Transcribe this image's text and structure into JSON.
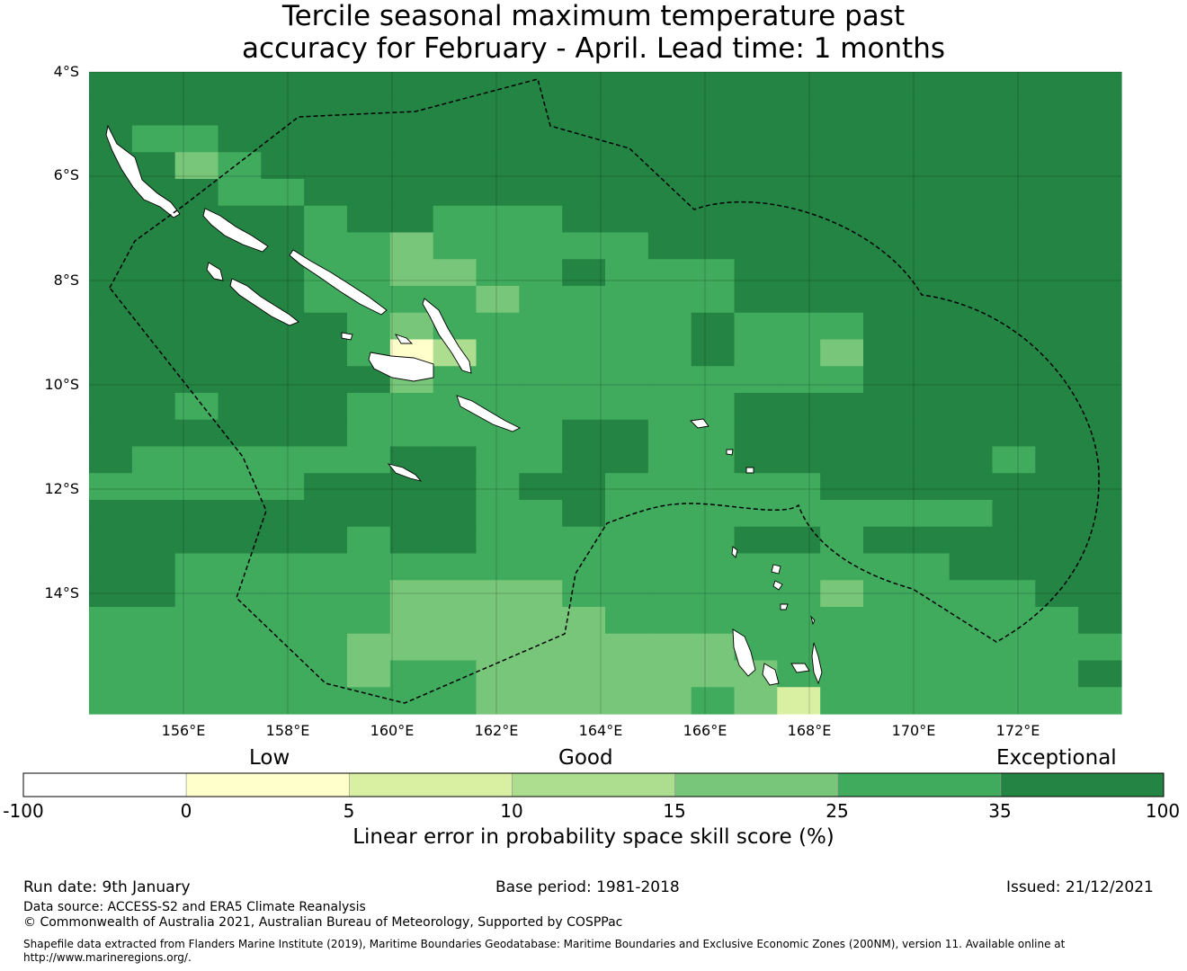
{
  "title": {
    "line1": "Tercile seasonal maximum temperature past",
    "line2": "accuracy for February - April. Lead time: 1 months"
  },
  "map": {
    "lat_labels": [
      "4°S",
      "6°S",
      "8°S",
      "10°S",
      "12°S",
      "14°S"
    ],
    "lon_labels": [
      "156°E",
      "158°E",
      "160°E",
      "162°E",
      "164°E",
      "166°E",
      "168°E",
      "170°E",
      "172°E"
    ],
    "palette": {
      "0": "#ffffcc",
      "1": "#d9f0a3",
      "2": "#addd8e",
      "3": "#78c679",
      "4": "#41ab5d",
      "5": "#238443"
    },
    "cell_classes": [
      "555555555555555555555555",
      "555555555555555555555555",
      "544555555555555555555555",
      "553455555555555555555555",
      "555445555555555555555555",
      "555554554445555555555555",
      "555554434444455555555555",
      "555554433445444555555555",
      "555554444344444555555555",
      "555555434444445444555555",
      "555555402444445443555555",
      "555555534444444444555555",
      "554555444444444555555555",
      "555555444445544555555555",
      "544444455445544555555455",
      "444445555455444445555555",
      "555555555445444444444555",
      "555555455444444554555555",
      "554444444444444444445555",
      "554444433334444443444455",
      "444444433333444444444445",
      "444444333333333444444444",
      "444444344333333344444445",
      "444444444333334314444444"
    ],
    "land_color": "#ffffff",
    "boundary_style": "dashed"
  },
  "colorbar": {
    "category_labels": [
      "Low",
      "Good",
      "Exceptional"
    ],
    "ticks": [
      "-100",
      "0",
      "5",
      "10",
      "15",
      "25",
      "35",
      "100"
    ],
    "colors": [
      "#ffffff",
      "#ffffcc",
      "#d9f0a3",
      "#addd8e",
      "#78c679",
      "#41ab5d",
      "#238443"
    ],
    "title": "Linear error in probability space skill score (%)"
  },
  "footer": {
    "run_date": "Run date: 9th January",
    "base_period": "Base period: 1981-2018",
    "issued": "Issued: 21/12/2021",
    "data_source": "Data source: ACCESS-S2 and ERA5 Climate Reanalysis",
    "copyright": "© Commonwealth of Australia 2021, Australian Bureau of Meteorology, Supported by COSPPac",
    "shapefile_note": "Shapefile data extracted from Flanders Marine Institute (2019), Maritime Boundaries Geodatabase: Maritime Boundaries and Exclusive Economic Zones (200NM), version 11. Available online at http://www.marineregions.org/."
  }
}
